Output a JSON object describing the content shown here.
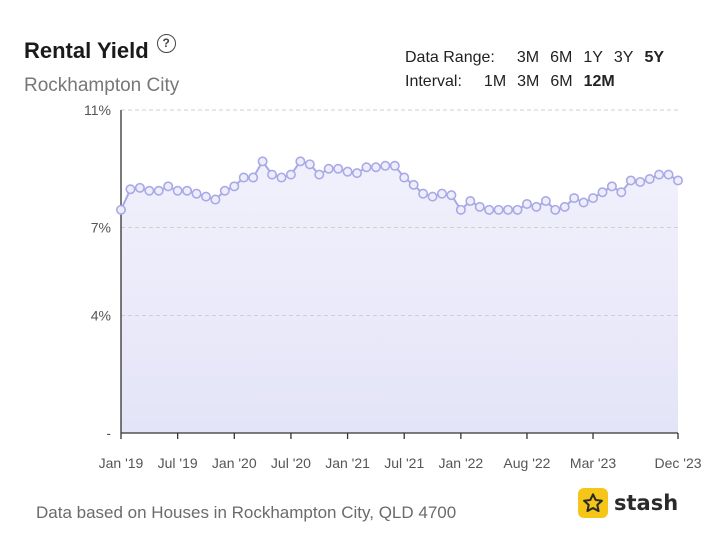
{
  "header": {
    "title": "Rental Yield",
    "help_glyph": "?",
    "subtitle": "Rockhampton City"
  },
  "controls": {
    "data_range_label": "Data Range:",
    "data_range_options": [
      "3M",
      "6M",
      "1Y",
      "3Y",
      "5Y"
    ],
    "data_range_selected": "5Y",
    "interval_label": "Interval:",
    "interval_options": [
      "1M",
      "3M",
      "6M",
      "12M"
    ],
    "interval_selected": "12M"
  },
  "footer": {
    "note": "Data based on Houses in Rockhampton City, QLD 4700"
  },
  "brand": {
    "name": "stash",
    "icon": "star-icon",
    "color": "#f5c518"
  },
  "chart_data": {
    "type": "area",
    "title": "Rental Yield",
    "subtitle": "Rockhampton City",
    "xlabel": "",
    "ylabel": "",
    "ylim": [
      0,
      11
    ],
    "y_ticks": [
      {
        "value": 11,
        "label": "11%"
      },
      {
        "value": 7,
        "label": "7%"
      },
      {
        "value": 4,
        "label": "4%"
      },
      {
        "value": 0,
        "label": "-"
      }
    ],
    "x_ticks": [
      {
        "index": 0,
        "label": "Jan '19"
      },
      {
        "index": 6,
        "label": "Jul '19"
      },
      {
        "index": 12,
        "label": "Jan '20"
      },
      {
        "index": 18,
        "label": "Jul '20"
      },
      {
        "index": 24,
        "label": "Jan '21"
      },
      {
        "index": 30,
        "label": "Jul '21"
      },
      {
        "index": 36,
        "label": "Jan '22"
      },
      {
        "index": 43,
        "label": "Aug '22"
      },
      {
        "index": 50,
        "label": "Mar '23"
      },
      {
        "index": 59,
        "label": "Dec '23"
      }
    ],
    "grid": true,
    "line_color": "#a9a9e8",
    "fill_color": "#e4e4f8",
    "series": [
      {
        "name": "",
        "x_start": "2019-01",
        "x_end": "2023-12",
        "values": [
          7.6,
          8.3,
          8.35,
          8.25,
          8.25,
          8.4,
          8.25,
          8.25,
          8.15,
          8.05,
          7.95,
          8.25,
          8.4,
          8.7,
          8.7,
          9.25,
          8.8,
          8.7,
          8.8,
          9.25,
          9.15,
          8.8,
          9.0,
          9.0,
          8.9,
          8.85,
          9.05,
          9.05,
          9.1,
          9.1,
          8.7,
          8.45,
          8.15,
          8.05,
          8.15,
          8.1,
          7.6,
          7.9,
          7.7,
          7.6,
          7.6,
          7.6,
          7.6,
          7.8,
          7.7,
          7.9,
          7.6,
          7.7,
          8.0,
          7.85,
          8.0,
          8.2,
          8.4,
          8.2,
          8.6,
          8.55,
          8.65,
          8.8,
          8.8,
          8.6
        ]
      }
    ]
  }
}
